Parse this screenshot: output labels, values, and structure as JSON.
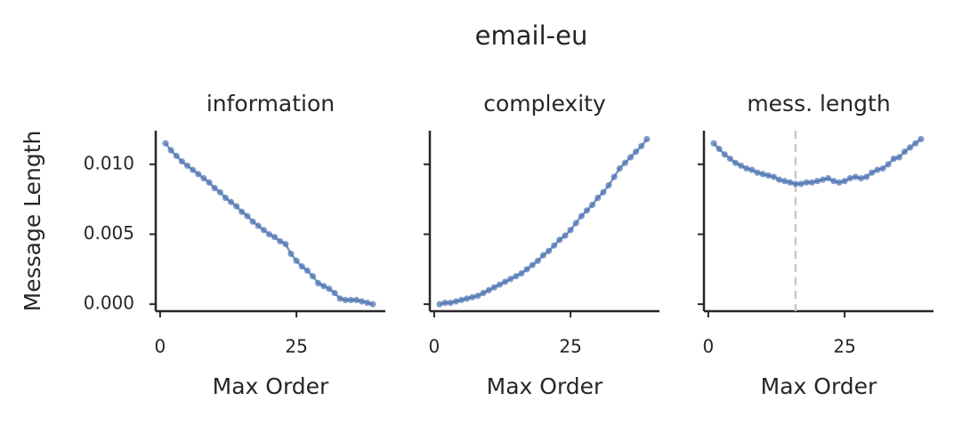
{
  "title": "email-eu",
  "chart_data": [
    {
      "type": "line",
      "title": "information",
      "xlabel": "Max Order",
      "ylabel": "Message Length",
      "x": [
        1,
        2,
        3,
        4,
        5,
        6,
        7,
        8,
        9,
        10,
        11,
        12,
        13,
        14,
        15,
        16,
        17,
        18,
        19,
        20,
        21,
        22,
        23,
        24,
        25,
        26,
        27,
        28,
        29,
        30,
        31,
        32,
        33,
        34,
        35,
        36,
        37,
        38,
        39
      ],
      "series": [
        {
          "color": "#4c72b0",
          "values": [
            0.0115,
            0.011,
            0.0106,
            0.0102,
            0.0099,
            0.0096,
            0.0093,
            0.009,
            0.0087,
            0.0083,
            0.008,
            0.0076,
            0.0073,
            0.007,
            0.0066,
            0.0063,
            0.0059,
            0.0056,
            0.0053,
            0.005,
            0.0048,
            0.0045,
            0.0043,
            0.0036,
            0.0031,
            0.0027,
            0.0024,
            0.002,
            0.0015,
            0.0013,
            0.0011,
            0.0008,
            0.0004,
            0.0003,
            0.0003,
            0.0003,
            0.0002,
            0.0001,
            0.0
          ]
        }
      ],
      "xlim": [
        -0.8,
        41.3
      ],
      "xticks": [
        0,
        25
      ],
      "ylim": [
        -0.0005,
        0.0124
      ],
      "yticks": [
        {
          "value": 0,
          "label": "0.000"
        },
        {
          "value": 0.005,
          "label": "0.005"
        },
        {
          "value": 0.01,
          "label": "0.010"
        }
      ]
    },
    {
      "type": "line",
      "title": "complexity",
      "xlabel": "Max Order",
      "x": [
        1,
        2,
        3,
        4,
        5,
        6,
        7,
        8,
        9,
        10,
        11,
        12,
        13,
        14,
        15,
        16,
        17,
        18,
        19,
        20,
        21,
        22,
        23,
        24,
        25,
        26,
        27,
        28,
        29,
        30,
        31,
        32,
        33,
        34,
        35,
        36,
        37,
        38,
        39
      ],
      "series": [
        {
          "color": "#4c72b0",
          "values": [
            0.0,
            0.0001,
            0.0001,
            0.0002,
            0.0003,
            0.0004,
            0.0005,
            0.0006,
            0.0008,
            0.001,
            0.0012,
            0.0014,
            0.0016,
            0.0018,
            0.002,
            0.0022,
            0.0025,
            0.0028,
            0.0031,
            0.0035,
            0.0038,
            0.0042,
            0.0046,
            0.0049,
            0.0053,
            0.0058,
            0.0063,
            0.0067,
            0.0071,
            0.0076,
            0.008,
            0.0085,
            0.0091,
            0.0097,
            0.0101,
            0.0105,
            0.0109,
            0.0113,
            0.0118
          ]
        }
      ],
      "xlim": [
        -0.8,
        41.3
      ],
      "xticks": [
        0,
        25
      ],
      "ylim": [
        -0.0005,
        0.0124
      ],
      "yticks": [
        0,
        0.005,
        0.01
      ]
    },
    {
      "type": "line",
      "title": "mess. length",
      "xlabel": "Max Order",
      "x": [
        1,
        2,
        3,
        4,
        5,
        6,
        7,
        8,
        9,
        10,
        11,
        12,
        13,
        14,
        15,
        16,
        17,
        18,
        19,
        20,
        21,
        22,
        23,
        24,
        25,
        26,
        27,
        28,
        29,
        30,
        31,
        32,
        33,
        34,
        35,
        36,
        37,
        38,
        39
      ],
      "series": [
        {
          "color": "#4c72b0",
          "values": [
            0.0115,
            0.0111,
            0.0107,
            0.0104,
            0.0101,
            0.0099,
            0.0097,
            0.0096,
            0.0094,
            0.0093,
            0.0092,
            0.0091,
            0.0089,
            0.0088,
            0.0087,
            0.0086,
            0.0086,
            0.0087,
            0.0087,
            0.0088,
            0.0089,
            0.009,
            0.0088,
            0.0087,
            0.0088,
            0.009,
            0.0091,
            0.009,
            0.0091,
            0.0094,
            0.0096,
            0.0097,
            0.01,
            0.0104,
            0.0105,
            0.0109,
            0.0112,
            0.0115,
            0.0118
          ]
        }
      ],
      "xlim": [
        -0.8,
        41.3
      ],
      "xticks": [
        0,
        25
      ],
      "ylim": [
        -0.0005,
        0.0124
      ],
      "yticks": [
        0,
        0.005,
        0.01
      ],
      "vline": 16,
      "vline_color": "#c8c8c8"
    }
  ]
}
